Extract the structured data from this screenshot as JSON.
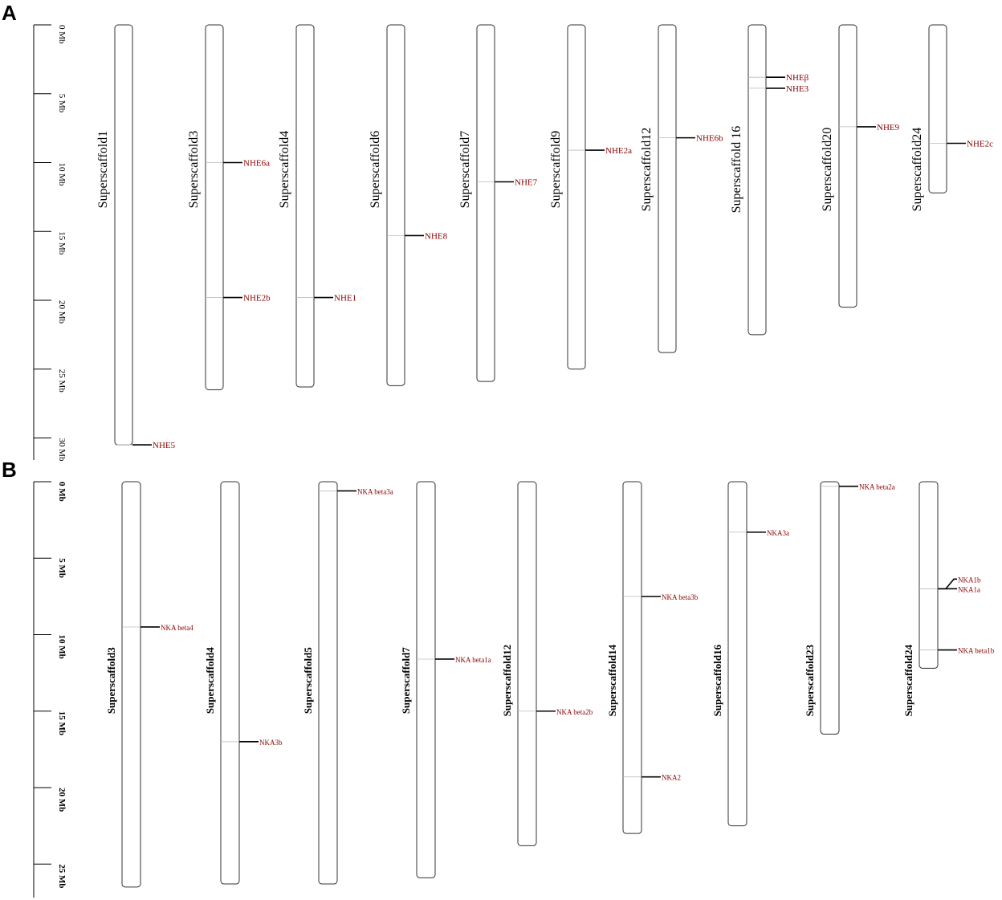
{
  "panel_a": {
    "letter": "A",
    "ruler_ticks": [
      {
        "label": "0 Mb",
        "mb": 0
      },
      {
        "label": "5 Mb",
        "mb": 5
      },
      {
        "label": "10 Mb",
        "mb": 10
      },
      {
        "label": "15 Mb",
        "mb": 15
      },
      {
        "label": "20 Mb",
        "mb": 20
      },
      {
        "label": "25 Mb",
        "mb": 25
      },
      {
        "label": "30 Mb",
        "mb": 30
      }
    ],
    "chromosomes": [
      {
        "name": "Superscaffold1",
        "length_mb": 30.5,
        "genes": [
          {
            "name": "NHE5",
            "pos_mb": 30.5
          }
        ]
      },
      {
        "name": "Superscaffold3",
        "length_mb": 26.5,
        "genes": [
          {
            "name": "NHE6a",
            "pos_mb": 10.0
          },
          {
            "name": "NHE2b",
            "pos_mb": 19.8
          }
        ]
      },
      {
        "name": "Superscaffold4",
        "length_mb": 26.3,
        "genes": [
          {
            "name": "NHE1",
            "pos_mb": 19.8
          }
        ]
      },
      {
        "name": "Superscaffold6",
        "length_mb": 26.2,
        "genes": [
          {
            "name": "NHE8",
            "pos_mb": 15.3
          }
        ]
      },
      {
        "name": "Superscaffold7",
        "length_mb": 25.9,
        "genes": [
          {
            "name": "NHE7",
            "pos_mb": 11.4
          }
        ]
      },
      {
        "name": "Superscaffold9",
        "length_mb": 25.0,
        "genes": [
          {
            "name": "NHE2a",
            "pos_mb": 9.1
          }
        ]
      },
      {
        "name": "Superscaffold12",
        "length_mb": 23.8,
        "genes": [
          {
            "name": "NHE6b",
            "pos_mb": 8.2
          }
        ]
      },
      {
        "name": "Superscaffold 16",
        "length_mb": 22.5,
        "genes": [
          {
            "name": "NHEβ",
            "pos_mb": 3.8
          },
          {
            "name": "NHE3",
            "pos_mb": 4.6
          }
        ]
      },
      {
        "name": "Superscaffold20",
        "length_mb": 20.5,
        "genes": [
          {
            "name": "NHE9",
            "pos_mb": 7.4
          }
        ]
      },
      {
        "name": "Superscaffold24",
        "length_mb": 12.2,
        "genes": [
          {
            "name": "NHE2c",
            "pos_mb": 8.6
          }
        ]
      }
    ]
  },
  "panel_b": {
    "letter": "B",
    "ruler_ticks": [
      {
        "label": "0 Mb",
        "mb": 0
      },
      {
        "label": "5 Mb",
        "mb": 5
      },
      {
        "label": "10 Mb",
        "mb": 10
      },
      {
        "label": "15 Mb",
        "mb": 15
      },
      {
        "label": "20 Mb",
        "mb": 20
      },
      {
        "label": "25 Mb",
        "mb": 25
      }
    ],
    "chromosomes": [
      {
        "name": "Superscaffold3",
        "length_mb": 26.5,
        "genes": [
          {
            "name": "NKA beta4",
            "pos_mb": 9.5
          }
        ]
      },
      {
        "name": "Superscaffold4",
        "length_mb": 26.3,
        "genes": [
          {
            "name": "NKA3b",
            "pos_mb": 17.0
          }
        ]
      },
      {
        "name": "Superscaffold5",
        "length_mb": 26.3,
        "genes": [
          {
            "name": "NKA beta3a",
            "pos_mb": 0.6
          }
        ]
      },
      {
        "name": "Superscaffold7",
        "length_mb": 25.9,
        "genes": [
          {
            "name": "NKA beta1a",
            "pos_mb": 11.6
          }
        ]
      },
      {
        "name": "Superscaffold12",
        "length_mb": 23.8,
        "genes": [
          {
            "name": "NKA beta2b",
            "pos_mb": 15.0
          }
        ]
      },
      {
        "name": "Superscaffold14",
        "length_mb": 23.0,
        "genes": [
          {
            "name": "NKA beta3b",
            "pos_mb": 7.5
          },
          {
            "name": "NKA2",
            "pos_mb": 19.3
          }
        ]
      },
      {
        "name": "Superscaffold16",
        "length_mb": 22.5,
        "genes": [
          {
            "name": "NKA3a",
            "pos_mb": 3.3
          }
        ]
      },
      {
        "name": "Superscaffold23",
        "length_mb": 16.5,
        "genes": [
          {
            "name": "NKA beta2a",
            "pos_mb": 0.3
          }
        ]
      },
      {
        "name": "Superscaffold24",
        "length_mb": 12.2,
        "genes": [
          {
            "name": "NKA1b",
            "pos_mb": 7.0
          },
          {
            "name": "NKA1a",
            "pos_mb": 7.0
          },
          {
            "name": "NKA beta1b",
            "pos_mb": 11.0
          }
        ]
      }
    ]
  }
}
